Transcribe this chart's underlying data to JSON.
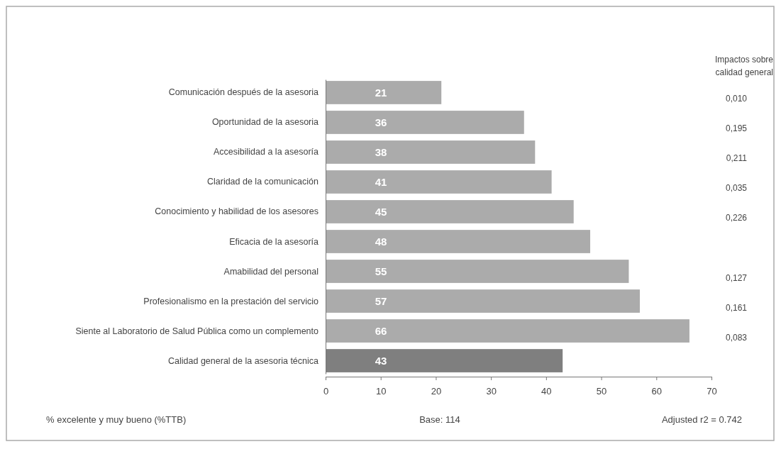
{
  "chart_data": {
    "type": "bar",
    "orientation": "horizontal",
    "categories": [
      "Comunicación después de la asesoria",
      "Oportunidad de la asesoria",
      "Accesibilidad a la asesoría",
      "Claridad de la comunicación",
      "Conocimiento y habilidad de los asesores",
      "Eficacia de la asesoría",
      "Amabilidad del personal",
      "Profesionalismo en la prestación del servicio",
      "Siente al Laboratorio de Salud Pública como un complemento",
      "Calidad general de la asesoria técnica"
    ],
    "values": [
      21,
      36,
      38,
      41,
      45,
      48,
      55,
      57,
      66,
      43
    ],
    "colors": [
      "#ababab",
      "#ababab",
      "#ababab",
      "#ababab",
      "#ababab",
      "#ababab",
      "#ababab",
      "#ababab",
      "#ababab",
      "#7f7f7f"
    ],
    "data_labels": true,
    "xlim": [
      0,
      70
    ],
    "xticks": [
      0,
      10,
      20,
      30,
      40,
      50,
      60,
      70
    ],
    "grid": false,
    "annotations": [
      "Impactos sobre calidad general",
      "0,010",
      "0,195",
      "0,211",
      "0,035",
      "0,226",
      "0,127",
      "0,161",
      "0,083",
      "% excelente y muy bueno (%TTB)",
      "Base: 114",
      "Adjusted r2 = 0.742"
    ]
  }
}
